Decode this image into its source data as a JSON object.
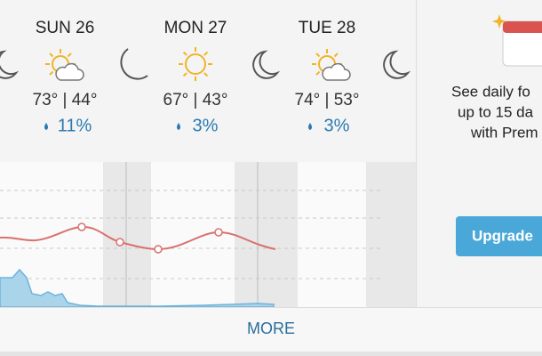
{
  "forecast": {
    "days": [
      {
        "label": "SUN 26",
        "temps": "73° | 44°",
        "precip": "11%"
      },
      {
        "label": "MON 27",
        "temps": "67° | 43°",
        "precip": "3%"
      },
      {
        "label": "TUE 28",
        "temps": "74° | 53°",
        "precip": "3%"
      }
    ]
  },
  "promo": {
    "lines": [
      "See daily fo",
      "up to 15 da",
      "with Prem"
    ],
    "button": "Upgrade"
  },
  "footer": {
    "more": "MORE"
  }
}
